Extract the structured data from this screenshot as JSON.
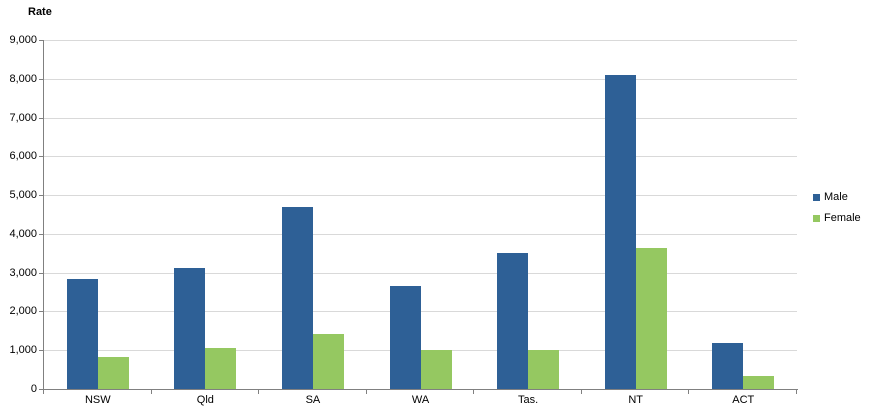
{
  "chart_data": {
    "type": "bar",
    "title": "Rate",
    "categories": [
      "NSW",
      "Qld",
      "SA",
      "WA",
      "Tas.",
      "NT",
      "ACT"
    ],
    "series": [
      {
        "name": "Male",
        "color": "#2e6096",
        "values": [
          2850,
          3130,
          4700,
          2670,
          3520,
          8100,
          1190
        ]
      },
      {
        "name": "Female",
        "color": "#95c861",
        "values": [
          820,
          1050,
          1420,
          1000,
          1010,
          3650,
          330
        ]
      }
    ],
    "xlabel": "",
    "ylabel": "Rate",
    "ylim": [
      0,
      9000
    ],
    "ytick_interval": 1000,
    "ytick_labels": [
      "0",
      "1,000",
      "2,000",
      "3,000",
      "4,000",
      "5,000",
      "6,000",
      "7,000",
      "8,000",
      "9,000"
    ],
    "grid": "horizontal",
    "legend_position": "right",
    "colors": {
      "gridline": "#d9d9d9",
      "axis": "#808080",
      "text": "#000000",
      "background": "#ffffff"
    }
  }
}
